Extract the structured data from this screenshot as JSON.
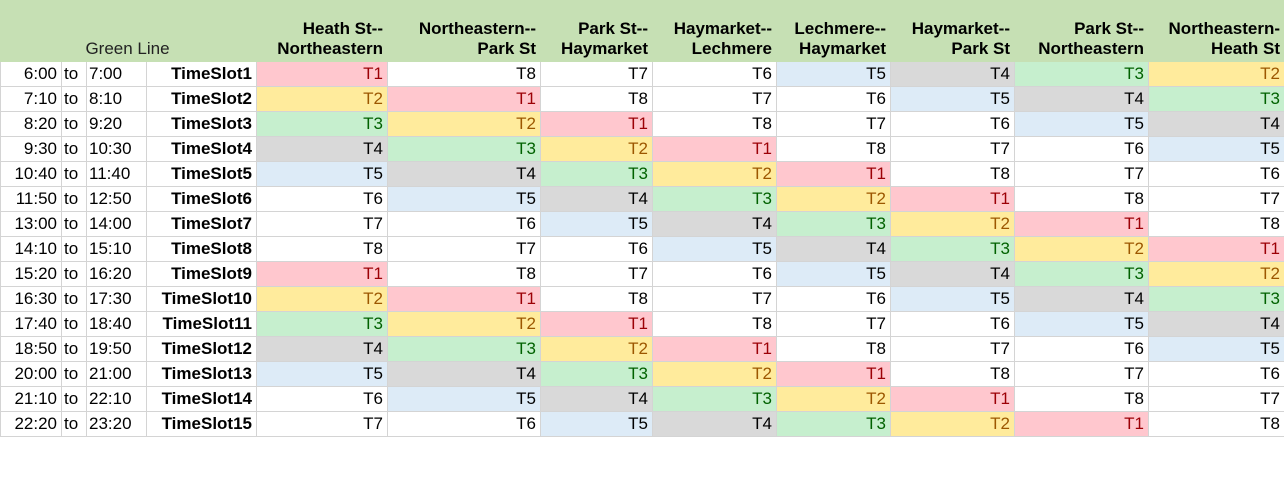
{
  "sheet": {
    "line_title": "Green Line",
    "routes": [
      {
        "line1": "Heath St--",
        "line2": "Northeastern"
      },
      {
        "line1": "Northeastern--",
        "line2": "Park St"
      },
      {
        "line1": "Park St--",
        "line2": "Haymarket"
      },
      {
        "line1": "Haymarket--",
        "line2": "Lechmere"
      },
      {
        "line1": "Lechmere--",
        "line2": "Haymarket"
      },
      {
        "line1": "Haymarket--",
        "line2": "Park St"
      },
      {
        "line1": "Park St--",
        "line2": "Northeastern"
      },
      {
        "line1": "Northeastern-",
        "line2": "Heath St"
      }
    ],
    "rows": [
      {
        "start": "6:00",
        "sep": "to",
        "end": "7:00",
        "slot": "TimeSlot1",
        "trains": [
          "T1",
          "T8",
          "T7",
          "T6",
          "T5",
          "T4",
          "T3",
          "T2"
        ]
      },
      {
        "start": "7:10",
        "sep": "to",
        "end": "8:10",
        "slot": "TimeSlot2",
        "trains": [
          "T2",
          "T1",
          "T8",
          "T7",
          "T6",
          "T5",
          "T4",
          "T3"
        ]
      },
      {
        "start": "8:20",
        "sep": "to",
        "end": "9:20",
        "slot": "TimeSlot3",
        "trains": [
          "T3",
          "T2",
          "T1",
          "T8",
          "T7",
          "T6",
          "T5",
          "T4"
        ]
      },
      {
        "start": "9:30",
        "sep": "to",
        "end": "10:30",
        "slot": "TimeSlot4",
        "trains": [
          "T4",
          "T3",
          "T2",
          "T1",
          "T8",
          "T7",
          "T6",
          "T5"
        ]
      },
      {
        "start": "10:40",
        "sep": "to",
        "end": "11:40",
        "slot": "TimeSlot5",
        "trains": [
          "T5",
          "T4",
          "T3",
          "T2",
          "T1",
          "T8",
          "T7",
          "T6"
        ]
      },
      {
        "start": "11:50",
        "sep": "to",
        "end": "12:50",
        "slot": "TimeSlot6",
        "trains": [
          "T6",
          "T5",
          "T4",
          "T3",
          "T2",
          "T1",
          "T8",
          "T7"
        ]
      },
      {
        "start": "13:00",
        "sep": "to",
        "end": "14:00",
        "slot": "TimeSlot7",
        "trains": [
          "T7",
          "T6",
          "T5",
          "T4",
          "T3",
          "T2",
          "T1",
          "T8"
        ]
      },
      {
        "start": "14:10",
        "sep": "to",
        "end": "15:10",
        "slot": "TimeSlot8",
        "trains": [
          "T8",
          "T7",
          "T6",
          "T5",
          "T4",
          "T3",
          "T2",
          "T1"
        ]
      },
      {
        "start": "15:20",
        "sep": "to",
        "end": "16:20",
        "slot": "TimeSlot9",
        "trains": [
          "T1",
          "T8",
          "T7",
          "T6",
          "T5",
          "T4",
          "T3",
          "T2"
        ]
      },
      {
        "start": "16:30",
        "sep": "to",
        "end": "17:30",
        "slot": "TimeSlot10",
        "trains": [
          "T2",
          "T1",
          "T8",
          "T7",
          "T6",
          "T5",
          "T4",
          "T3"
        ]
      },
      {
        "start": "17:40",
        "sep": "to",
        "end": "18:40",
        "slot": "TimeSlot11",
        "trains": [
          "T3",
          "T2",
          "T1",
          "T8",
          "T7",
          "T6",
          "T5",
          "T4"
        ]
      },
      {
        "start": "18:50",
        "sep": "to",
        "end": "19:50",
        "slot": "TimeSlot12",
        "trains": [
          "T4",
          "T3",
          "T2",
          "T1",
          "T8",
          "T7",
          "T6",
          "T5"
        ]
      },
      {
        "start": "20:00",
        "sep": "to",
        "end": "21:00",
        "slot": "TimeSlot13",
        "trains": [
          "T5",
          "T4",
          "T3",
          "T2",
          "T1",
          "T8",
          "T7",
          "T6"
        ]
      },
      {
        "start": "21:10",
        "sep": "to",
        "end": "22:10",
        "slot": "TimeSlot14",
        "trains": [
          "T6",
          "T5",
          "T4",
          "T3",
          "T2",
          "T1",
          "T8",
          "T7"
        ]
      },
      {
        "start": "22:20",
        "sep": "to",
        "end": "23:20",
        "slot": "TimeSlot15",
        "trains": [
          "T7",
          "T6",
          "T5",
          "T4",
          "T3",
          "T2",
          "T1",
          "T8"
        ]
      }
    ]
  },
  "colors": {
    "header_bg": "#c6e0b4",
    "T1": "#ffc7ce",
    "T2": "#ffeb9c",
    "T3": "#c6efce",
    "T4": "#d9d9d9",
    "T5": "#ddebf7",
    "default": "#ffffff"
  }
}
